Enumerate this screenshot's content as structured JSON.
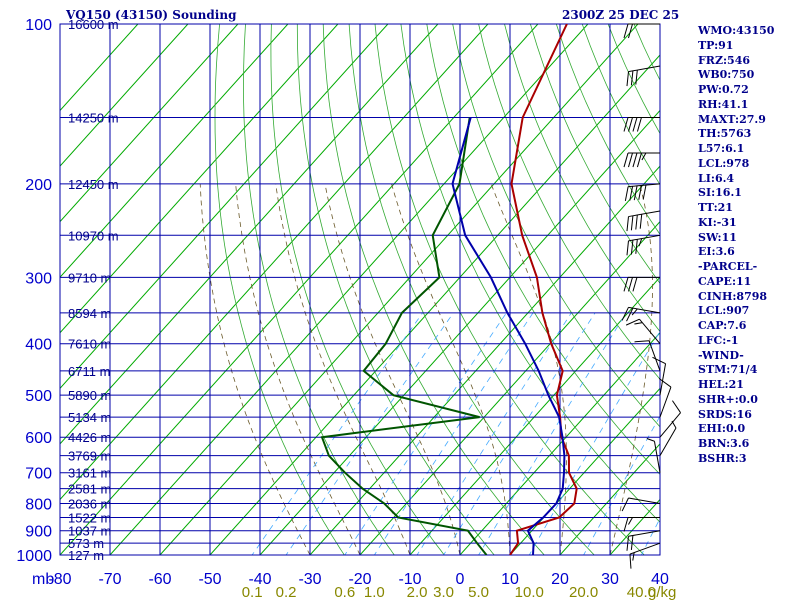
{
  "header": {
    "title": "VQ150 (43150) Sounding",
    "datetime": "2300Z 25 DEC 25"
  },
  "indices": [
    "WMO:43150",
    "TP:91",
    "FRZ:546",
    "WB0:750",
    "PW:0.72",
    "RH:41.1",
    "MAXT:27.9",
    "TH:5763",
    "L57:6.1",
    "LCL:978",
    "LI:6.4",
    "SI:16.1",
    "TT:21",
    "KI:-31",
    "SW:11",
    "EI:3.6",
    "-PARCEL-",
    "CAPE:11",
    "CINH:8798",
    "LCL:907",
    "CAP:7.6",
    "LFC:-1",
    "-WIND-",
    "STM:71/4",
    "HEL:21",
    "SHR+:0.0",
    "SRDS:16",
    "EHI:0.0",
    "BRN:3.6",
    "BSHR:3"
  ],
  "colors": {
    "grid": "#0000aa",
    "isotherm": "#00aa00",
    "dry_adiabat": "#33aa33",
    "moist_adiabat": "#6b5a2a",
    "mixing_ratio": "#44aaff",
    "temperature": "#aa0000",
    "dewpoint": "#005500",
    "parcel": "#0000aa",
    "label": "#0000cc",
    "mixing_label": "#888800",
    "text": "#00008b"
  },
  "chart_data": {
    "type": "skew-t",
    "title": "VQ150 (43150) Sounding",
    "xlabel": "mb",
    "x_ticks": [
      -80,
      -70,
      -60,
      -50,
      -40,
      -30,
      -20,
      -10,
      0,
      10,
      20,
      30,
      40
    ],
    "pressure_levels": [
      100,
      200,
      300,
      400,
      500,
      600,
      700,
      800,
      900,
      1000
    ],
    "xlim": [
      -80,
      40
    ],
    "ylim": [
      100,
      1000
    ],
    "height_labels": [
      {
        "p": 100,
        "label": "16600 m"
      },
      {
        "p": 150,
        "label": "14250 m"
      },
      {
        "p": 200,
        "label": "12450 m"
      },
      {
        "p": 250,
        "label": "10970 m"
      },
      {
        "p": 300,
        "label": "9710 m"
      },
      {
        "p": 350,
        "label": "8594 m"
      },
      {
        "p": 400,
        "label": "7610 m"
      },
      {
        "p": 450,
        "label": "6711 m"
      },
      {
        "p": 500,
        "label": "5890 m"
      },
      {
        "p": 550,
        "label": "5134 m"
      },
      {
        "p": 600,
        "label": "4426 m"
      },
      {
        "p": 650,
        "label": "3769 m"
      },
      {
        "p": 700,
        "label": "3161 m"
      },
      {
        "p": 750,
        "label": "2581 m"
      },
      {
        "p": 800,
        "label": "2036 m"
      },
      {
        "p": 850,
        "label": "1522 m"
      },
      {
        "p": 900,
        "label": "1037 m"
      },
      {
        "p": 950,
        "label": "573 m"
      },
      {
        "p": 1000,
        "label": "127 m"
      }
    ],
    "mixing_ratio_labels": [
      "0.1",
      "0.2",
      "0.6",
      "1.0",
      "2.0",
      "3.0",
      "5.0",
      "10.0",
      "20.0",
      "40.0"
    ],
    "mixing_ratio_values": [
      0.1,
      0.2,
      0.6,
      1.0,
      2.0,
      3.0,
      5.0,
      10.0,
      20.0,
      40.0
    ],
    "mixing_ratio_unit": "g/kg",
    "series": [
      {
        "name": "temperature",
        "points": [
          [
            100,
            -74.2
          ],
          [
            150,
            -66.2
          ],
          [
            200,
            -56.5
          ],
          [
            250,
            -45.1
          ],
          [
            300,
            -34.6
          ],
          [
            350,
            -27.1
          ],
          [
            400,
            -19.8
          ],
          [
            450,
            -12.6
          ],
          [
            500,
            -9.4
          ],
          [
            550,
            -4.8
          ],
          [
            600,
            -0.9
          ],
          [
            650,
            3.9
          ],
          [
            700,
            7.0
          ],
          [
            750,
            11.4
          ],
          [
            800,
            13.6
          ],
          [
            850,
            13.1
          ],
          [
            900,
            7.0
          ],
          [
            950,
            9.5
          ],
          [
            1000,
            10.0
          ]
        ]
      },
      {
        "name": "dewpoint",
        "points": [
          [
            150,
            -76.8
          ],
          [
            200,
            -66.9
          ],
          [
            250,
            -63.0
          ],
          [
            300,
            -54.1
          ],
          [
            350,
            -55.2
          ],
          [
            400,
            -52.9
          ],
          [
            450,
            -52.4
          ],
          [
            500,
            -42.1
          ],
          [
            550,
            -20.9
          ],
          [
            600,
            -48.8
          ],
          [
            650,
            -44.1
          ],
          [
            700,
            -37.8
          ],
          [
            750,
            -31.4
          ],
          [
            800,
            -24.4
          ],
          [
            850,
            -19.1
          ],
          [
            900,
            -2.8
          ],
          [
            950,
            1.3
          ],
          [
            1000,
            5.3
          ]
        ]
      },
      {
        "name": "parcel",
        "points": [
          [
            150,
            -76.6
          ],
          [
            200,
            -68.3
          ],
          [
            250,
            -56.5
          ],
          [
            300,
            -43.8
          ],
          [
            350,
            -34.1
          ],
          [
            400,
            -25.0
          ],
          [
            450,
            -17.4
          ],
          [
            500,
            -11.1
          ],
          [
            550,
            -5.0
          ],
          [
            600,
            -0.7
          ],
          [
            650,
            3.0
          ],
          [
            700,
            6.0
          ],
          [
            750,
            8.6
          ],
          [
            800,
            10.0
          ],
          [
            850,
            9.9
          ],
          [
            900,
            9.2
          ],
          [
            950,
            12.6
          ],
          [
            1000,
            14.6
          ]
        ]
      }
    ],
    "wind_barbs": [
      {
        "p": 100,
        "dir": 270,
        "spd": 20
      },
      {
        "p": 120,
        "dir": 260,
        "spd": 30
      },
      {
        "p": 150,
        "dir": 270,
        "spd": 40
      },
      {
        "p": 175,
        "dir": 270,
        "spd": 45
      },
      {
        "p": 200,
        "dir": 265,
        "spd": 50
      },
      {
        "p": 225,
        "dir": 260,
        "spd": 40
      },
      {
        "p": 250,
        "dir": 260,
        "spd": 35
      },
      {
        "p": 300,
        "dir": 270,
        "spd": 30
      },
      {
        "p": 350,
        "dir": 280,
        "spd": 25
      },
      {
        "p": 400,
        "dir": 320,
        "spd": 15
      },
      {
        "p": 450,
        "dir": 340,
        "spd": 10
      },
      {
        "p": 500,
        "dir": 10,
        "spd": 10
      },
      {
        "p": 550,
        "dir": 20,
        "spd": 10
      },
      {
        "p": 600,
        "dir": 40,
        "spd": 10
      },
      {
        "p": 650,
        "dir": 30,
        "spd": 5
      },
      {
        "p": 700,
        "dir": 350,
        "spd": 5
      },
      {
        "p": 800,
        "dir": 280,
        "spd": 10
      },
      {
        "p": 850,
        "dir": 270,
        "spd": 15
      },
      {
        "p": 900,
        "dir": 260,
        "spd": 20
      },
      {
        "p": 950,
        "dir": 250,
        "spd": 15
      }
    ]
  }
}
